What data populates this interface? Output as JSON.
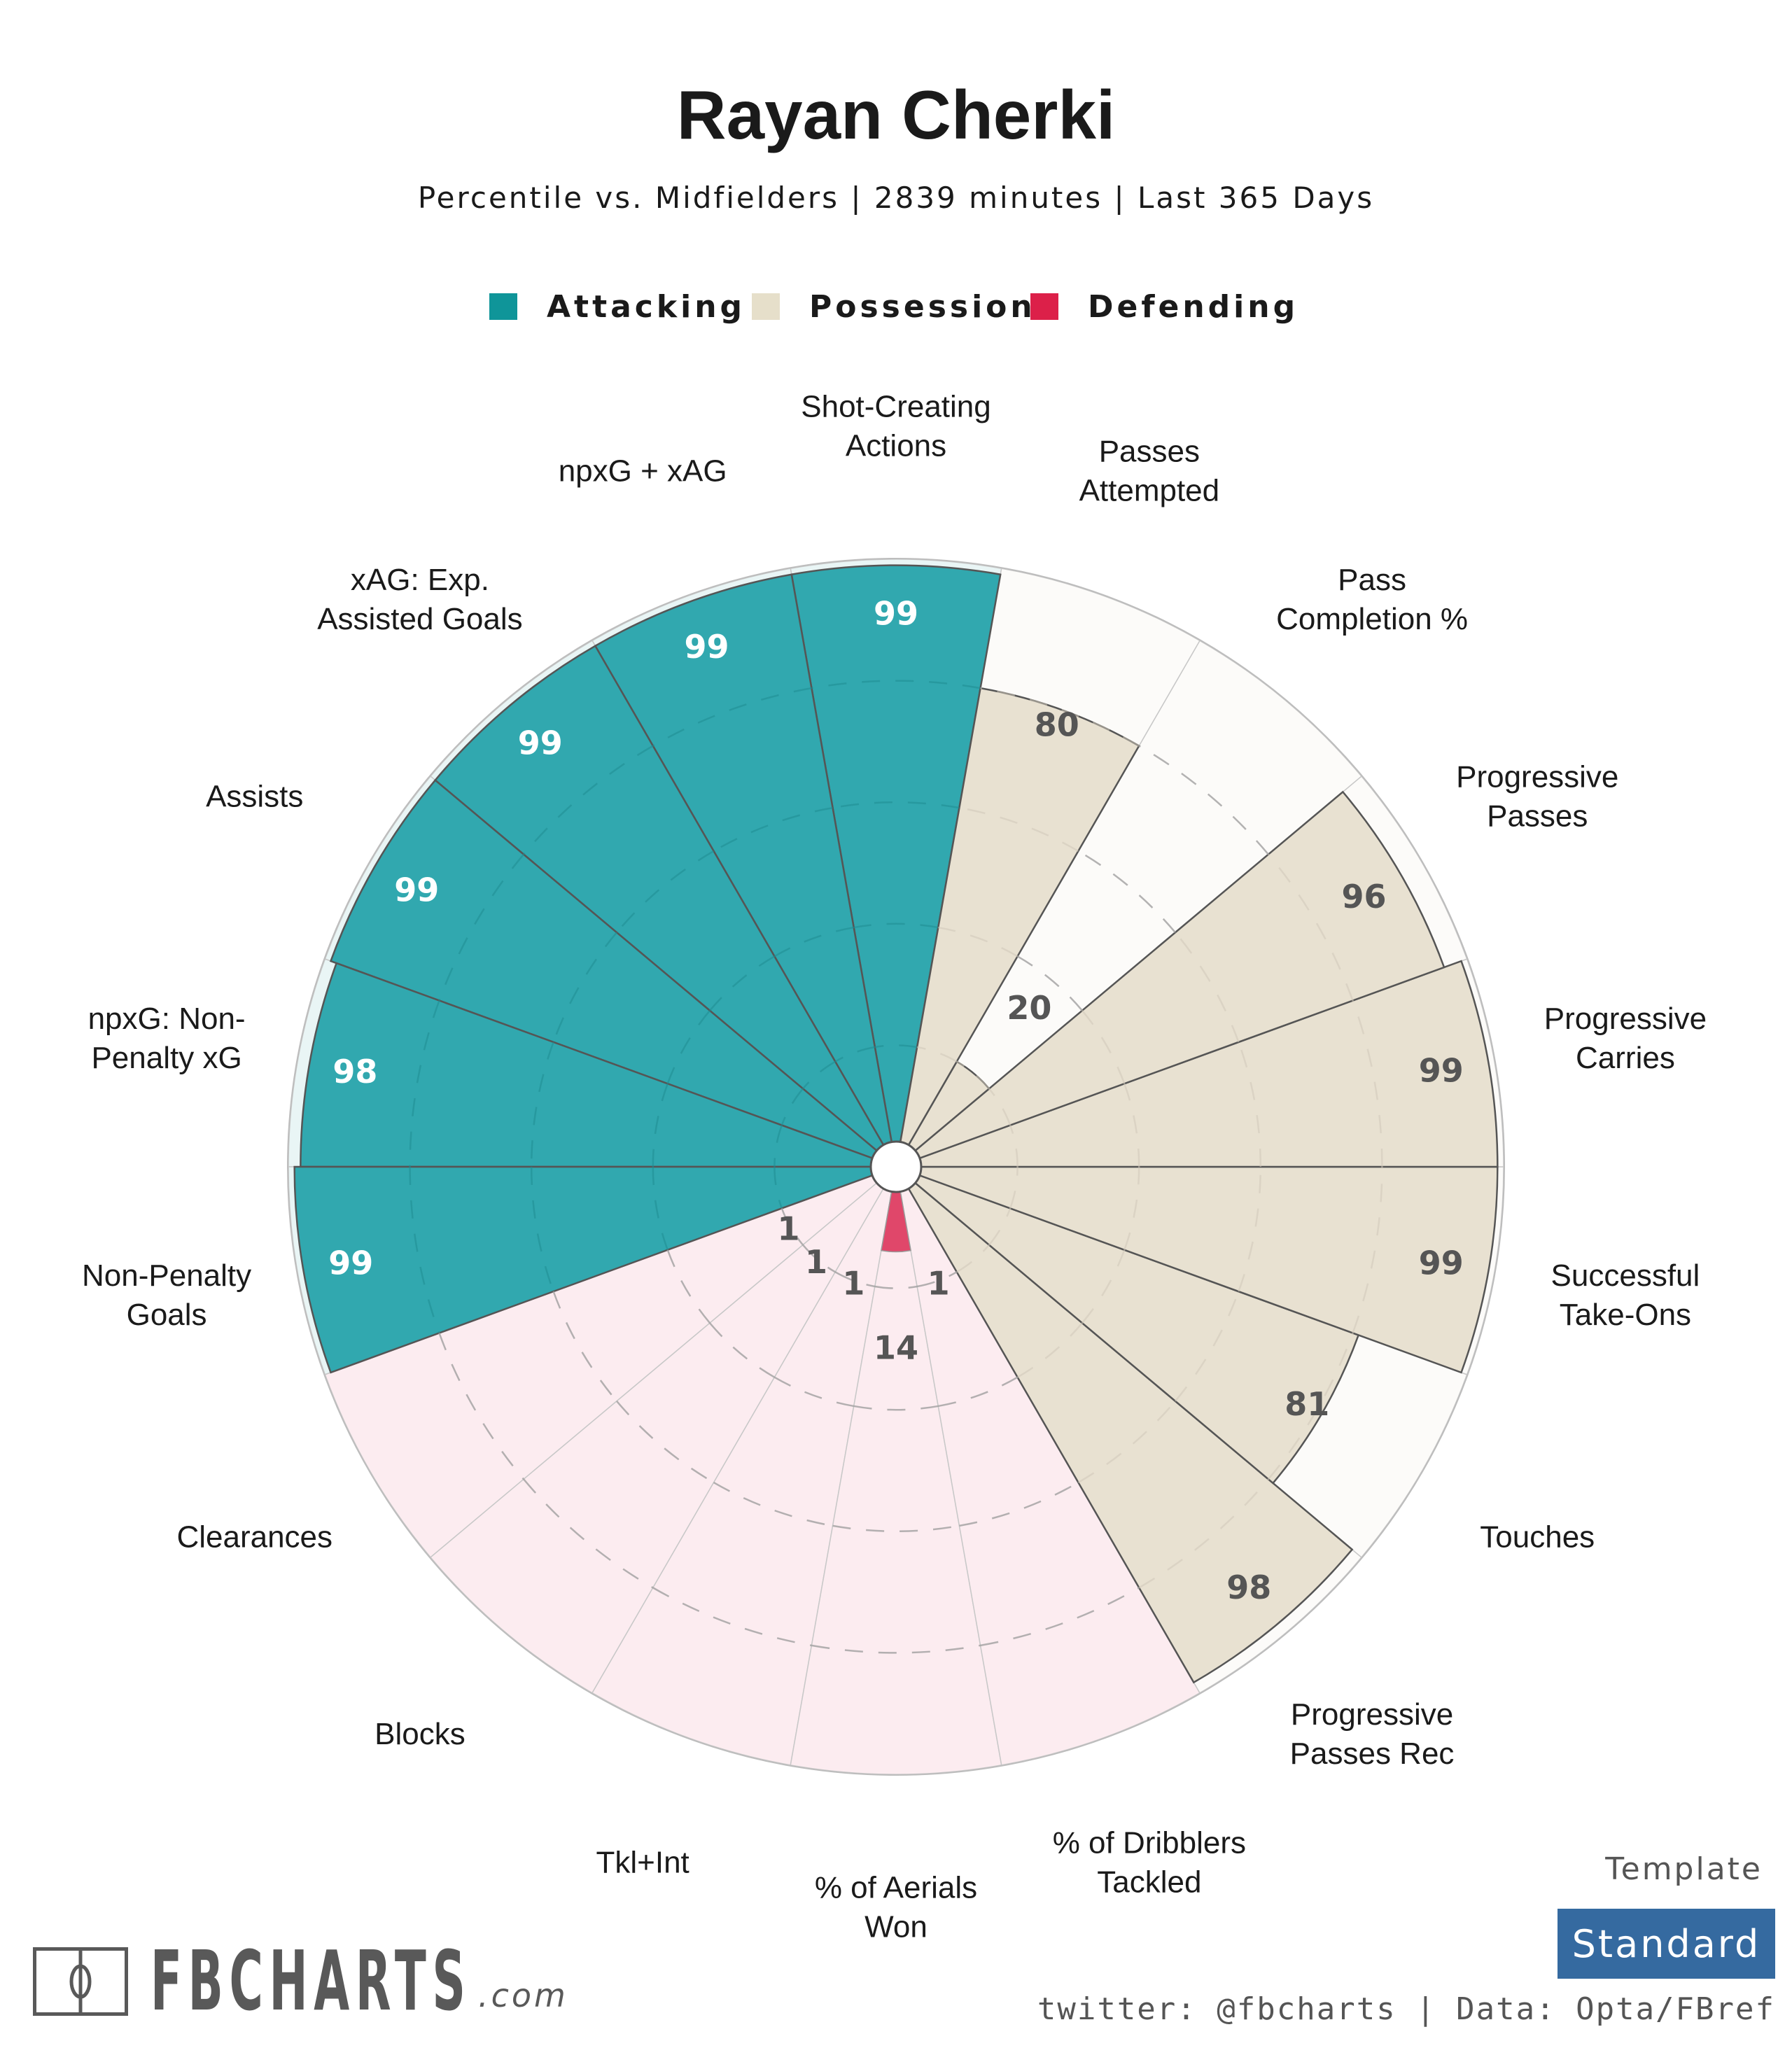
{
  "header": {
    "title": "Rayan Cherki",
    "subtitle": "Percentile vs. Midfielders | 2839 minutes | Last 365 Days"
  },
  "legend": [
    {
      "label": "Attacking",
      "color": "#0f9599"
    },
    {
      "label": "Possession",
      "color": "#e6dfca"
    },
    {
      "label": "Defending",
      "color": "#dc2049"
    }
  ],
  "colors": {
    "attacking_bar": "#31a8af",
    "attacking_bg": "#e9f5f5",
    "possession_bar": "#e8e1d1",
    "possession_bg": "#fcfbf9",
    "defending_bar": "#e0476a",
    "defending_bg": "#fcecf0",
    "value_on_dark": "#ffffff",
    "value_on_light": "#555555"
  },
  "chart_data": {
    "type": "polar-bar",
    "title": "Rayan Cherki",
    "subtitle": "Percentile vs. Midfielders | 2839 minutes | Last 365 Days",
    "rlim": [
      0,
      100
    ],
    "gridlines": [
      20,
      40,
      60,
      80
    ],
    "start": "Shot-Creating Actions at top, proceeding counter-clockwise through Attacking, Defending, then Possession",
    "metrics": [
      {
        "label": "Shot-Creating\nActions",
        "category": "Attacking",
        "value": 99
      },
      {
        "label": "npxG + xAG",
        "category": "Attacking",
        "value": 99
      },
      {
        "label": "xAG: Exp.\nAssisted Goals",
        "category": "Attacking",
        "value": 99
      },
      {
        "label": "Assists",
        "category": "Attacking",
        "value": 99
      },
      {
        "label": "npxG: Non-\nPenalty xG",
        "category": "Attacking",
        "value": 98
      },
      {
        "label": "Non-Penalty\nGoals",
        "category": "Attacking",
        "value": 99
      },
      {
        "label": "Clearances",
        "category": "Defending",
        "value": 1
      },
      {
        "label": "Blocks",
        "category": "Defending",
        "value": 1
      },
      {
        "label": "Tkl+Int",
        "category": "Defending",
        "value": 1
      },
      {
        "label": "% of Aerials\nWon",
        "category": "Defending",
        "value": 14
      },
      {
        "label": "% of Dribblers\nTackled",
        "category": "Defending",
        "value": 1
      },
      {
        "label": "Progressive\nPasses Rec",
        "category": "Possession",
        "value": 98
      },
      {
        "label": "Touches",
        "category": "Possession",
        "value": 81
      },
      {
        "label": "Successful\nTake-Ons",
        "category": "Possession",
        "value": 99
      },
      {
        "label": "Progressive\nCarries",
        "category": "Possession",
        "value": 99
      },
      {
        "label": "Progressive\nPasses",
        "category": "Possession",
        "value": 96
      },
      {
        "label": "Pass\nCompletion %",
        "category": "Possession",
        "value": 20
      },
      {
        "label": "Passes\nAttempted",
        "category": "Possession",
        "value": 80
      }
    ]
  },
  "footer": {
    "logo_text": "FBCHARTS",
    "logo_suffix": ".com",
    "template_label": "Template",
    "template_value": "Standard",
    "template_color": "#356aa0",
    "credits": "twitter: @fbcharts | Data: Opta/FBref"
  }
}
